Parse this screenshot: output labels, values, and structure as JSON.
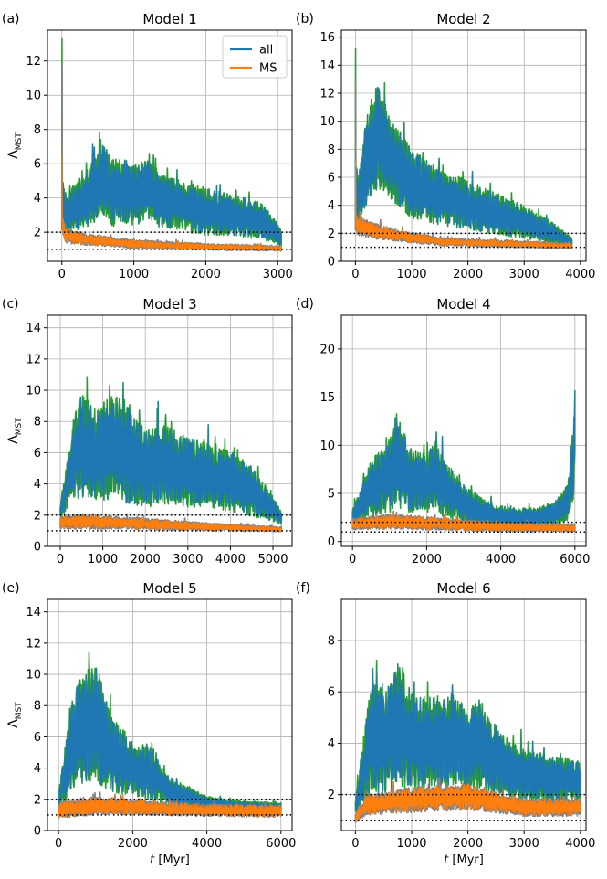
{
  "figure": {
    "colors": {
      "all": "#1f77b4",
      "ms": "#ff7f0e",
      "all_envelope": "#2ca02c",
      "ms_envelope": "#7f7f7f",
      "grid": "#b0b0b0",
      "reference_line": "#000000"
    },
    "reference_lines": [
      1,
      2
    ]
  },
  "chart_data": [
    {
      "type": "line",
      "panel_label": "(a)",
      "title": "Model 1",
      "xlabel": "",
      "ylabel": "Λ_MST",
      "xlim": [
        -200,
        3200
      ],
      "ylim": [
        0.3,
        13.8
      ],
      "xticks": [
        0,
        1000,
        2000,
        3000
      ],
      "yticks": [
        2,
        4,
        6,
        8,
        10,
        12
      ],
      "xmax_data": 3050,
      "legend": {
        "position": "top-right",
        "entries": [
          "all",
          "MS"
        ]
      },
      "series": [
        {
          "name": "all",
          "spike": 13.3,
          "x": [
            0,
            60,
            200,
            400,
            600,
            700,
            800,
            1000,
            1200,
            1400,
            1600,
            2000,
            2400,
            2800,
            3050
          ],
          "center": [
            4,
            3,
            3.5,
            4.2,
            5.2,
            4.2,
            4.5,
            4.2,
            4.4,
            3.8,
            3.6,
            3.2,
            3,
            2.6,
            1.7
          ],
          "band": [
            1.2,
            1.2,
            1.4,
            1.8,
            2.2,
            2,
            2,
            1.8,
            1.8,
            1.6,
            1.5,
            1.4,
            1.2,
            1.1,
            0.5
          ]
        },
        {
          "name": "MS",
          "spike": 11.8,
          "x": [
            0,
            60,
            300,
            1000,
            2000,
            3050
          ],
          "center": [
            2.5,
            1.8,
            1.6,
            1.3,
            1.15,
            1.05
          ],
          "band": [
            0.5,
            0.45,
            0.35,
            0.25,
            0.2,
            0.15
          ]
        }
      ]
    },
    {
      "type": "line",
      "panel_label": "(b)",
      "title": "Model 2",
      "xlabel": "",
      "ylabel": "",
      "xlim": [
        -250,
        4100
      ],
      "ylim": [
        0,
        16.5
      ],
      "xticks": [
        0,
        1000,
        2000,
        3000,
        4000
      ],
      "yticks": [
        0,
        2,
        4,
        6,
        8,
        10,
        12,
        14,
        16
      ],
      "xmax_data": 3850,
      "series": [
        {
          "name": "all",
          "spike": 15.2,
          "x": [
            0,
            50,
            250,
            400,
            600,
            1000,
            1500,
            2000,
            2500,
            3000,
            3500,
            3850
          ],
          "center": [
            5,
            4.5,
            8,
            9,
            7.5,
            5.5,
            4.6,
            4,
            3.4,
            2.8,
            2,
            1.4
          ],
          "band": [
            2,
            2,
            3.5,
            3.8,
            3,
            2.5,
            2,
            1.8,
            1.5,
            1.2,
            0.8,
            0.3
          ]
        },
        {
          "name": "MS",
          "spike": 13.1,
          "x": [
            0,
            50,
            300,
            800,
            1500,
            3850
          ],
          "center": [
            2.8,
            2.5,
            2.2,
            1.8,
            1.4,
            1.1
          ],
          "band": [
            0.8,
            0.7,
            0.6,
            0.4,
            0.3,
            0.2
          ]
        }
      ]
    },
    {
      "type": "line",
      "panel_label": "(c)",
      "title": "Model 3",
      "xlabel": "",
      "ylabel": "Λ_MST",
      "xlim": [
        -300,
        5450
      ],
      "ylim": [
        0,
        14.8
      ],
      "xticks": [
        0,
        1000,
        2000,
        3000,
        4000,
        5000
      ],
      "yticks": [
        0,
        2,
        4,
        6,
        8,
        10,
        12,
        14
      ],
      "xmax_data": 5200,
      "series": [
        {
          "name": "all",
          "spike": 0,
          "x": [
            0,
            300,
            500,
            800,
            1100,
            1400,
            1700,
            2000,
            2500,
            3000,
            3500,
            4000,
            4500,
            5000,
            5200
          ],
          "center": [
            2.2,
            5.5,
            6.5,
            5.8,
            6.2,
            6.5,
            5.5,
            5,
            5.2,
            4.8,
            4.5,
            4.2,
            3.5,
            2.4,
            1.8
          ],
          "band": [
            0.5,
            2.5,
            3.5,
            3,
            3.2,
            3.5,
            3,
            2.5,
            2.5,
            2.3,
            2,
            2,
            1.6,
            0.8,
            0.4
          ]
        },
        {
          "name": "MS",
          "spike": 0,
          "x": [
            0,
            500,
            1500,
            3000,
            4500,
            5200
          ],
          "center": [
            1.5,
            1.6,
            1.5,
            1.3,
            1.15,
            1.1
          ],
          "band": [
            0.4,
            0.5,
            0.4,
            0.3,
            0.2,
            0.15
          ]
        }
      ]
    },
    {
      "type": "line",
      "panel_label": "(d)",
      "title": "Model 4",
      "xlabel": "",
      "ylabel": "",
      "xlim": [
        -300,
        6300
      ],
      "ylim": [
        -0.5,
        23.5
      ],
      "xticks": [
        0,
        2000,
        4000,
        6000
      ],
      "yticks": [
        0,
        5,
        10,
        15,
        20
      ],
      "xmax_data": 6000,
      "series": [
        {
          "name": "all",
          "spike": 0,
          "x": [
            0,
            500,
            1000,
            1200,
            1500,
            2000,
            2200,
            2500,
            3000,
            3500,
            4000,
            4500,
            5000,
            5500,
            5800,
            5950,
            6000
          ],
          "center": [
            2.5,
            5.5,
            7,
            8.5,
            6.5,
            6,
            7,
            5.5,
            4,
            3,
            2.5,
            2.5,
            2.5,
            3,
            4,
            8,
            12
          ],
          "band": [
            0.8,
            3,
            4,
            5,
            3.5,
            3,
            4,
            3,
            2,
            1.5,
            1,
            1,
            1,
            1.3,
            2,
            4,
            4
          ]
        },
        {
          "name": "MS",
          "spike": 0,
          "x": [
            0,
            1000,
            2000,
            4000,
            6000
          ],
          "center": [
            1.8,
            2.1,
            1.9,
            1.5,
            1.4
          ],
          "band": [
            0.6,
            0.8,
            0.7,
            0.5,
            0.4
          ]
        }
      ]
    },
    {
      "type": "line",
      "panel_label": "(e)",
      "title": "Model 5",
      "xlabel": "t [Myr]",
      "ylabel": "Λ_MST",
      "xlim": [
        -300,
        6300
      ],
      "ylim": [
        0,
        14.8
      ],
      "xticks": [
        0,
        2000,
        4000,
        6000
      ],
      "yticks": [
        0,
        2,
        4,
        6,
        8,
        10,
        12,
        14
      ],
      "xmax_data": 6000,
      "series": [
        {
          "name": "all",
          "spike": 0,
          "x": [
            0,
            300,
            600,
            1000,
            1400,
            2000,
            2400,
            3000,
            4000,
            5000,
            6000
          ],
          "center": [
            1.8,
            5,
            6.5,
            7,
            5,
            3.8,
            3.8,
            2.5,
            1.8,
            1.6,
            1.5
          ],
          "band": [
            0.5,
            3,
            3.5,
            4,
            2.5,
            1.6,
            1.8,
            0.9,
            0.4,
            0.3,
            0.3
          ]
        },
        {
          "name": "MS",
          "spike": 0,
          "x": [
            0,
            1000,
            2000,
            4000,
            6000
          ],
          "center": [
            1.3,
            1.6,
            1.5,
            1.3,
            1.25
          ],
          "band": [
            0.5,
            0.6,
            0.5,
            0.4,
            0.4
          ]
        }
      ]
    },
    {
      "type": "line",
      "panel_label": "(f)",
      "title": "Model 6",
      "xlabel": "t [Myr]",
      "ylabel": "",
      "xlim": [
        -250,
        4100
      ],
      "ylim": [
        0.6,
        9.6
      ],
      "xticks": [
        0,
        1000,
        2000,
        3000,
        4000
      ],
      "yticks": [
        2,
        4,
        6,
        8
      ],
      "xmax_data": 4000,
      "series": [
        {
          "name": "all",
          "spike": 0,
          "x": [
            0,
            300,
            500,
            800,
            1000,
            1300,
            1800,
            2000,
            2200,
            2600,
            3000,
            3500,
            4000
          ],
          "center": [
            1.5,
            4.5,
            4,
            4.8,
            4,
            4,
            4.2,
            3.6,
            4,
            3.2,
            2.8,
            2.6,
            2.5
          ],
          "band": [
            0.3,
            2.5,
            2,
            2.5,
            2,
            1.8,
            1.8,
            1.5,
            1.8,
            1.2,
            1,
            0.9,
            0.8
          ]
        },
        {
          "name": "MS",
          "spike": 0,
          "x": [
            0,
            200,
            1000,
            2000,
            2500,
            3000,
            4000
          ],
          "center": [
            1.1,
            1.6,
            1.8,
            1.9,
            1.7,
            1.5,
            1.5
          ],
          "band": [
            0.2,
            0.4,
            0.5,
            0.5,
            0.4,
            0.35,
            0.35
          ]
        }
      ]
    }
  ]
}
